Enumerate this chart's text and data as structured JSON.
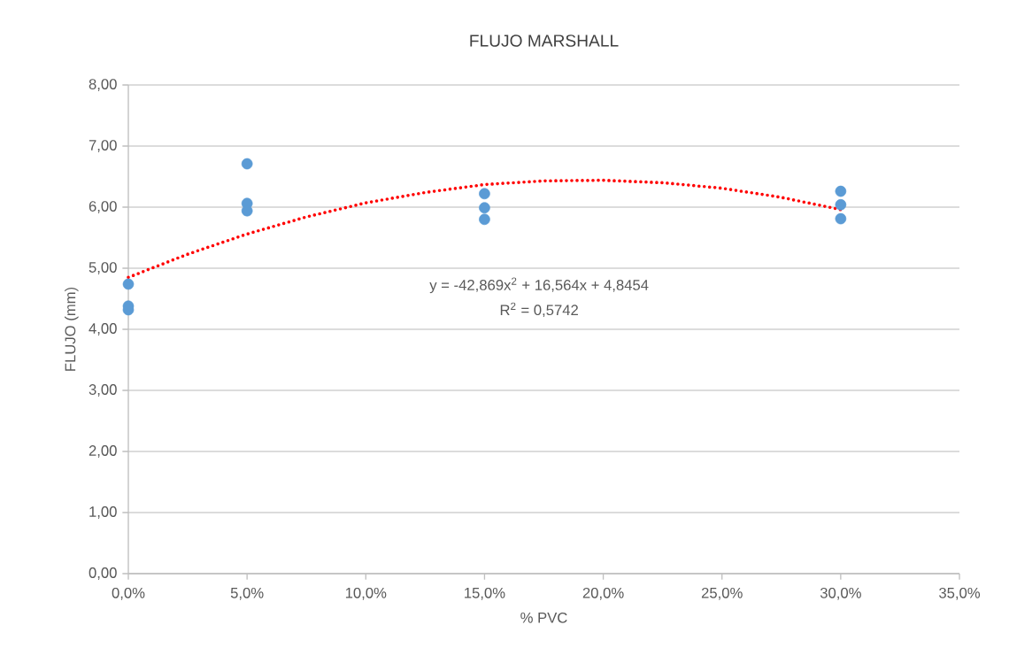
{
  "chart_data": {
    "type": "scatter",
    "title": "FLUJO MARSHALL",
    "xlabel": "% PVC",
    "ylabel": "FLUJO (mm)",
    "xlim": [
      0,
      0.35
    ],
    "xticks": [
      {
        "value": 0,
        "label": "0,0%"
      },
      {
        "value": 0.05,
        "label": "5,0%"
      },
      {
        "value": 0.1,
        "label": "10,0%"
      },
      {
        "value": 0.15,
        "label": "15,0%"
      },
      {
        "value": 0.2,
        "label": "20,0%"
      },
      {
        "value": 0.25,
        "label": "25,0%"
      },
      {
        "value": 0.3,
        "label": "30,0%"
      },
      {
        "value": 0.35,
        "label": "35,0%"
      }
    ],
    "ylim": [
      0,
      8
    ],
    "yticks": [
      {
        "value": 0,
        "label": "0,00"
      },
      {
        "value": 1,
        "label": "1,00"
      },
      {
        "value": 2,
        "label": "2,00"
      },
      {
        "value": 3,
        "label": "3,00"
      },
      {
        "value": 4,
        "label": "4,00"
      },
      {
        "value": 5,
        "label": "5,00"
      },
      {
        "value": 6,
        "label": "6,00"
      },
      {
        "value": 7,
        "label": "7,00"
      },
      {
        "value": 8,
        "label": "8,00"
      }
    ],
    "grid": "y",
    "series": [
      {
        "color": "#5b9bd5",
        "marker": "circle",
        "x": [
          0,
          0,
          0,
          0.05,
          0.05,
          0.05,
          0.15,
          0.15,
          0.15,
          0.3,
          0.3,
          0.3
        ],
        "values": [
          4.74,
          4.38,
          4.32,
          6.71,
          6.06,
          5.94,
          6.22,
          5.99,
          5.8,
          6.26,
          6.04,
          5.81
        ]
      },
      {
        "type": "line",
        "color": "#ff0000",
        "marker": "none",
        "line_style": "dotted",
        "x": [
          0,
          0.025,
          0.05,
          0.075,
          0.1,
          0.125,
          0.15,
          0.175,
          0.2,
          0.225,
          0.25,
          0.275,
          0.3
        ],
        "values": [
          4.85,
          5.23,
          5.56,
          5.84,
          6.07,
          6.24,
          6.37,
          6.43,
          6.44,
          6.4,
          6.31,
          6.16,
          5.96
        ]
      }
    ],
    "annotations": [
      "y = -42,869x$^{2}$ + 16,564x + 4,8454",
      "R$^{2}$ = 0,5742"
    ]
  }
}
